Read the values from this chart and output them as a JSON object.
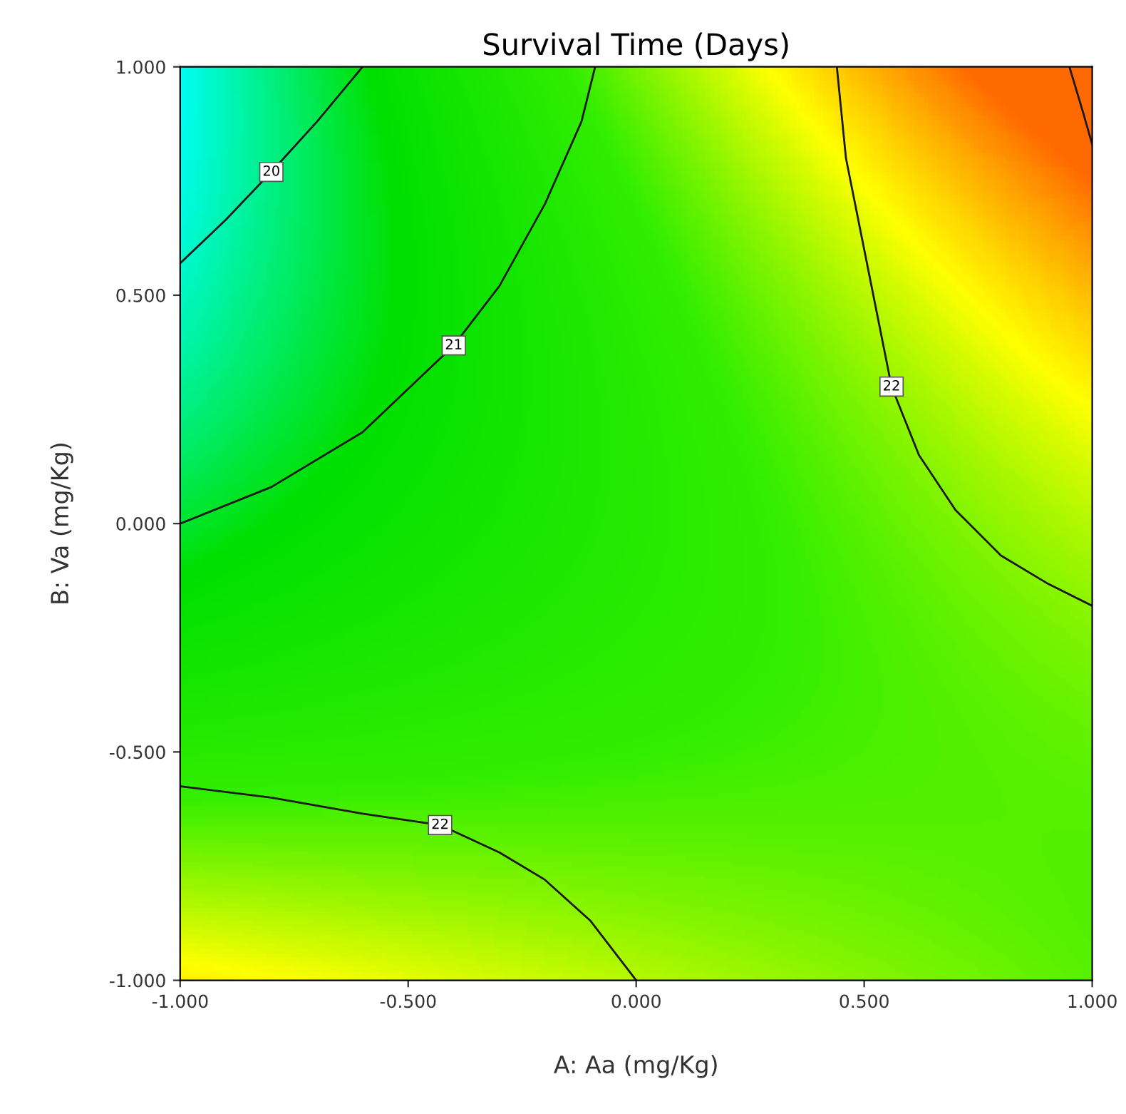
{
  "chart_data": {
    "type": "line",
    "title": "Survival Time (Days)",
    "xlabel": "A: Aa (mg/Kg)",
    "ylabel": "B: Va (mg/Kg)",
    "xlim": [
      -1,
      1
    ],
    "ylim": [
      -1,
      1
    ],
    "xticks": [
      {
        "value": -1,
        "label": "-1.000"
      },
      {
        "value": -0.5,
        "label": "-0.500"
      },
      {
        "value": 0,
        "label": "0.000"
      },
      {
        "value": 0.5,
        "label": "0.500"
      },
      {
        "value": 1,
        "label": "1.000"
      }
    ],
    "yticks": [
      {
        "value": -1,
        "label": "-1.000"
      },
      {
        "value": -0.5,
        "label": "-0.500"
      },
      {
        "value": 0,
        "label": "0.000"
      },
      {
        "value": 0.5,
        "label": "0.500"
      },
      {
        "value": 1,
        "label": "1.000"
      }
    ],
    "grid": false,
    "marker": "none",
    "line_style": "solid",
    "series": [
      {
        "color": "#1a1a1a",
        "x": [
          -1,
          -0.9,
          -0.8,
          -0.7,
          -0.6
        ],
        "values": [
          0.57,
          0.665,
          0.77,
          0.88,
          1.0
        ]
      },
      {
        "color": "#1a1a1a",
        "x": [
          -1,
          -0.8,
          -0.6,
          -0.4,
          -0.3,
          -0.2,
          -0.12,
          -0.09
        ],
        "values": [
          0,
          0.08,
          0.2,
          0.39,
          0.52,
          0.7,
          0.88,
          1.0
        ]
      },
      {
        "color": "#1a1a1a",
        "x": [
          0.44,
          0.46,
          0.5,
          0.56,
          0.62,
          0.7,
          0.8,
          0.9,
          1.0
        ],
        "values": [
          1.0,
          0.8,
          0.6,
          0.3,
          0.15,
          0.03,
          -0.07,
          -0.13,
          -0.18
        ]
      },
      {
        "color": "#1a1a1a",
        "x": [
          0.95,
          0.98,
          1.0
        ],
        "values": [
          1.0,
          0.9,
          0.83
        ]
      },
      {
        "color": "#1a1a1a",
        "x": [
          -1,
          -0.8,
          -0.6,
          -0.43,
          -0.3,
          -0.2,
          -0.1,
          0
        ],
        "values": [
          -0.575,
          -0.6,
          -0.635,
          -0.66,
          -0.72,
          -0.78,
          -0.87,
          -1.0
        ]
      }
    ],
    "annotations": [
      {
        "text": "20",
        "x": -0.8,
        "y": 0.77
      },
      {
        "text": "21",
        "x": -0.4,
        "y": 0.39
      },
      {
        "text": "22",
        "x": 0.56,
        "y": 0.3
      },
      {
        "text": "22",
        "x": -0.43,
        "y": -0.66
      }
    ]
  }
}
